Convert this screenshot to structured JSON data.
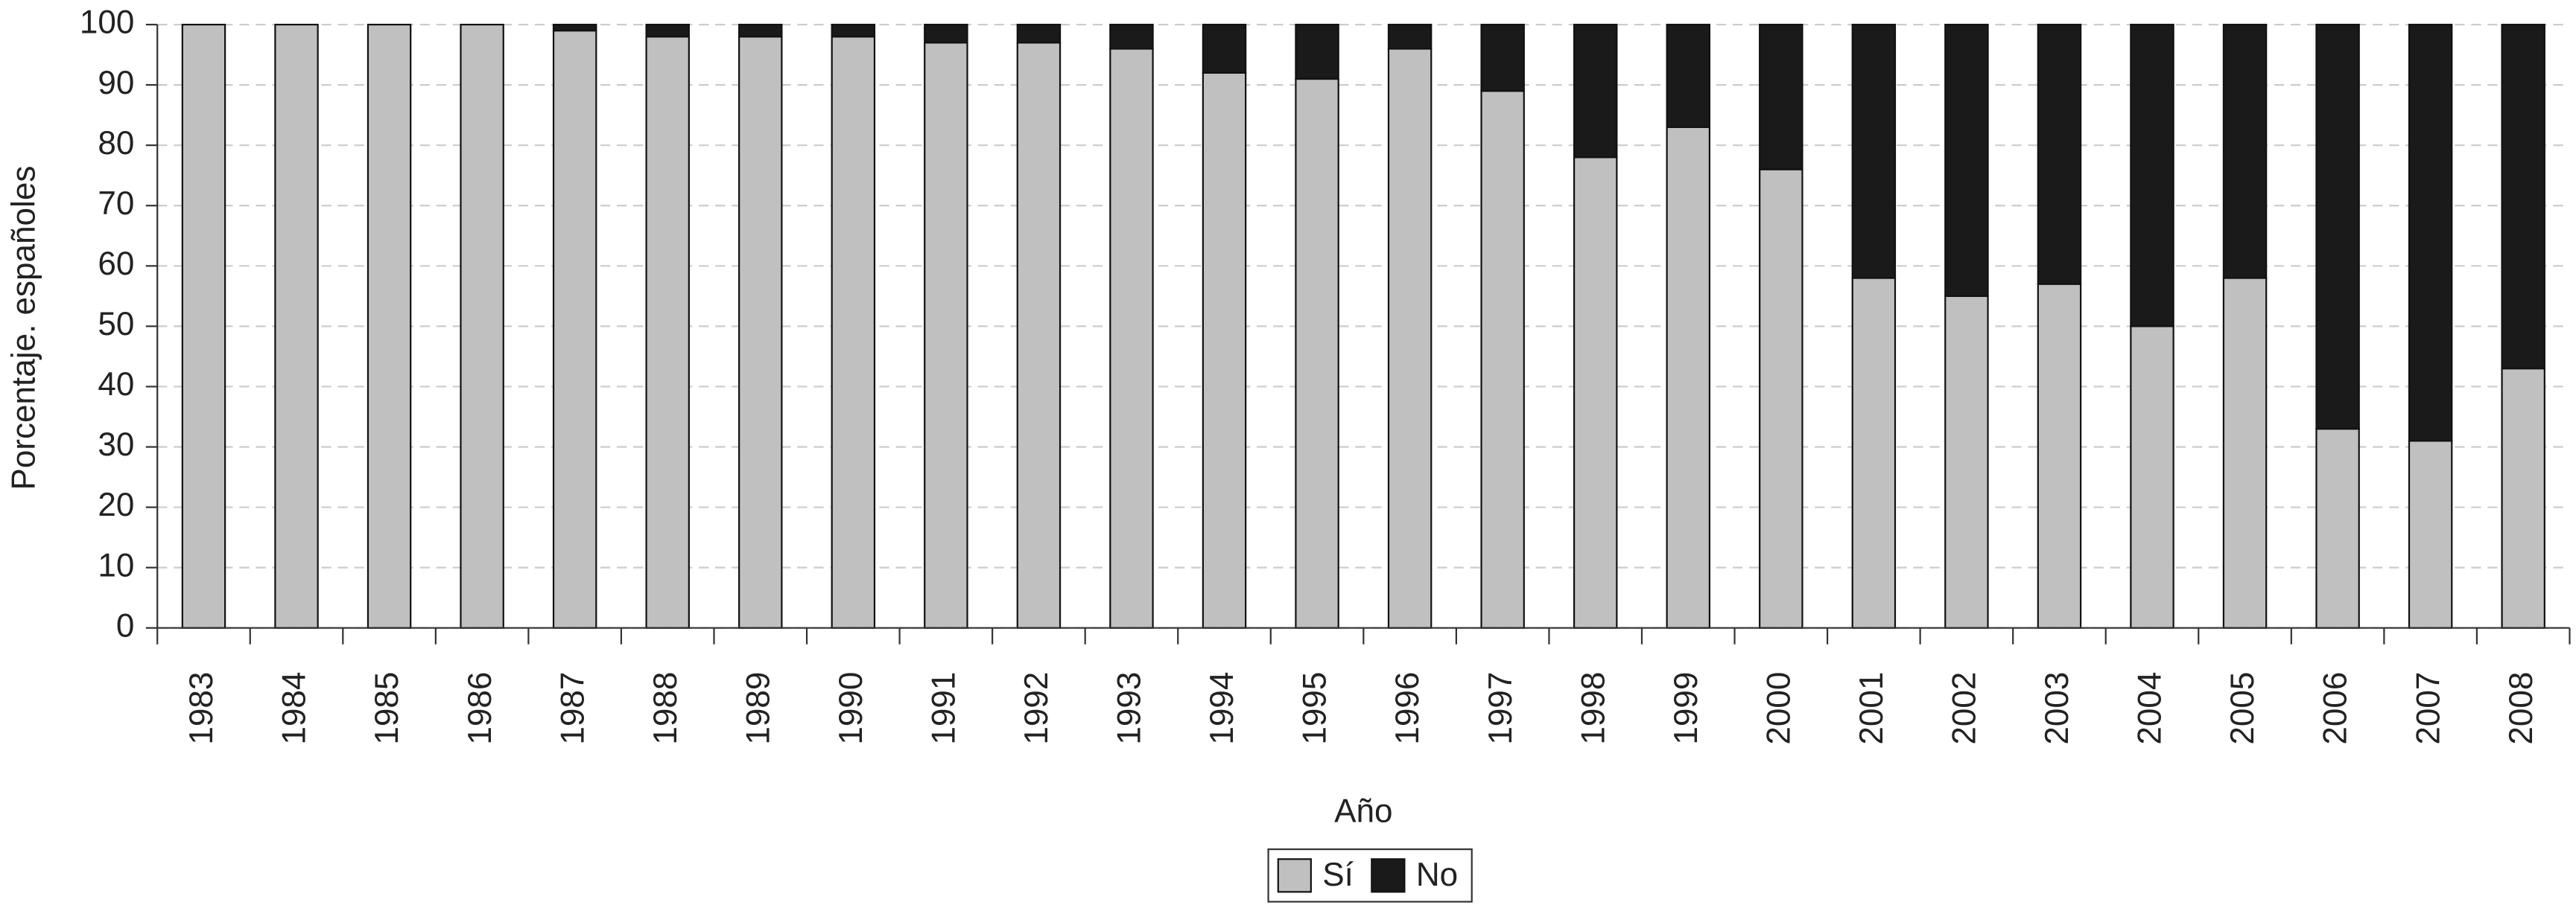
{
  "chart_data": {
    "type": "stacked_bar",
    "x_label": "Año",
    "y_label": "Porcentaje. españoles",
    "categories": [
      "1983",
      "1984",
      "1985",
      "1986",
      "1987",
      "1988",
      "1989",
      "1990",
      "1991",
      "1992",
      "1993",
      "1994",
      "1995",
      "1996",
      "1997",
      "1998",
      "1999",
      "2000",
      "2001",
      "2002",
      "2003",
      "2004",
      "2005",
      "2006",
      "2007",
      "2008"
    ],
    "series": [
      {
        "name": "Sí",
        "color": "#c0c0c0",
        "values": [
          100,
          100,
          100,
          100,
          99,
          98,
          98,
          98,
          97,
          97,
          96,
          92,
          91,
          96,
          89,
          78,
          83,
          76,
          58,
          55,
          57,
          50,
          58,
          33,
          31,
          43
        ]
      },
      {
        "name": "No",
        "color": "#1a1a1a",
        "values": [
          0,
          0,
          0,
          0,
          1,
          2,
          2,
          2,
          3,
          3,
          4,
          8,
          9,
          4,
          11,
          22,
          17,
          24,
          42,
          45,
          43,
          50,
          42,
          67,
          69,
          57
        ]
      }
    ],
    "ylim": [
      0,
      100
    ],
    "yticks": [
      0,
      10,
      20,
      30,
      40,
      50,
      60,
      70,
      80,
      90,
      100
    ],
    "grid": true,
    "legend": "bottom"
  }
}
